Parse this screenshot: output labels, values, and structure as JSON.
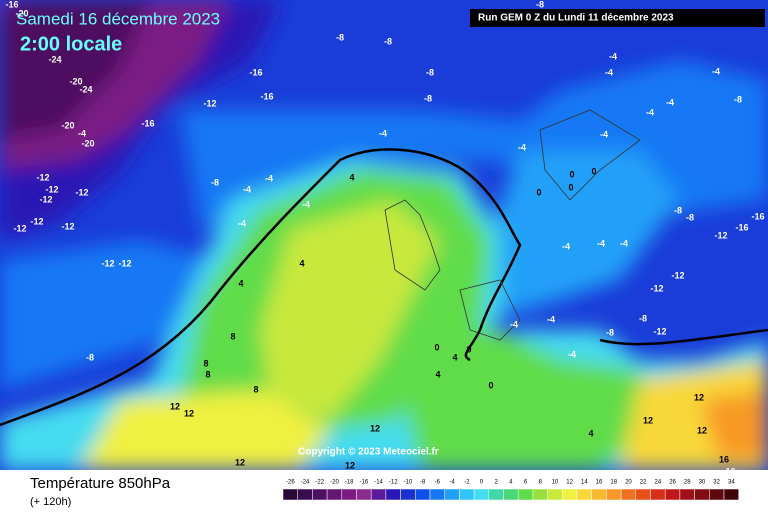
{
  "header": {
    "date": "Samedi 16 décembre 2023",
    "time": "2:00 locale",
    "run": "Run GEM 0 Z du Lundi 11 décembre 2023"
  },
  "footer": {
    "title": "Température 850hPa",
    "subtitle": "(+ 120h)",
    "copyright": "Copyright © 2023 Meteociel.fr"
  },
  "colorbar": {
    "labels": [
      "-26",
      "-24",
      "-22",
      "-20",
      "-18",
      "-16",
      "-14",
      "-12",
      "-10",
      "-8",
      "-6",
      "-4",
      "-2",
      "0",
      "2",
      "4",
      "6",
      "8",
      "10",
      "12",
      "14",
      "16",
      "18",
      "20",
      "22",
      "24",
      "26",
      "28",
      "30",
      "32",
      "34"
    ],
    "colors": [
      "#2a0838",
      "#3b0c4d",
      "#4e1060",
      "#641673",
      "#7a1c84",
      "#8c2a8e",
      "#5a1a9a",
      "#2a18b4",
      "#1a30d0",
      "#1050e8",
      "#1878f4",
      "#20a0f8",
      "#30c4f8",
      "#44dcf0",
      "#40d8a8",
      "#48d878",
      "#60dc48",
      "#98e040",
      "#c8e83c",
      "#f0f040",
      "#f8d838",
      "#f8b830",
      "#f89828",
      "#f07020",
      "#e85018",
      "#d83018",
      "#c01818",
      "#a01018",
      "#800c14",
      "#600810",
      "#400408"
    ]
  },
  "map": {
    "labels": [
      "-16",
      "-20",
      "-8",
      "-8",
      "-8",
      "-24",
      "-20",
      "-24",
      "-16",
      "-8",
      "-4",
      "-4",
      "-12",
      "-16",
      "-8",
      "-4",
      "-4",
      "-8",
      "-20",
      "-4",
      "-20",
      "-16",
      "-4",
      "-4",
      "-4",
      "-4",
      "-12",
      "-12",
      "-12",
      "-12",
      "-8",
      "-4",
      "-4",
      "4",
      "0",
      "0",
      "0",
      "0",
      "-4",
      "-4",
      "-12",
      "-12",
      "-12",
      "-8",
      "-8",
      "-12",
      "-16",
      "-16",
      "-12",
      "-12",
      "4",
      "-4",
      "-4",
      "-4",
      "-12",
      "-12",
      "4",
      "-8",
      "8",
      "8",
      "8",
      "-4",
      "-4",
      "-8",
      "-8",
      "0",
      "4",
      "0",
      "-4",
      "8",
      "0",
      "4",
      "12",
      "12",
      "12",
      "12",
      "12",
      "12",
      "4",
      "16",
      "12",
      "12",
      "-12",
      "-16"
    ]
  }
}
